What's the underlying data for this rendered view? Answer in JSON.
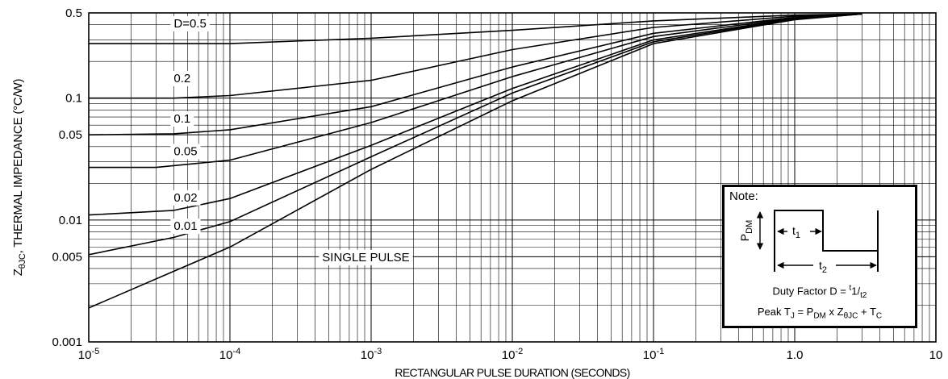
{
  "chart_data": {
    "type": "line",
    "xscale": "log",
    "yscale": "log",
    "xlim": [
      1e-05,
      10
    ],
    "ylim": [
      0.001,
      0.5
    ],
    "xlabel": "RECTANGULAR PULSE DURATION (SECONDS)",
    "ylabel": "Z",
    "ylabel_subscript": "θJC",
    "ylabel_suffix": ", THERMAL IMPEDANCE (°C/W)",
    "x_ticks": [
      {
        "value": 1e-05,
        "base": "10",
        "exp": "-5"
      },
      {
        "value": 0.0001,
        "base": "10",
        "exp": "-4"
      },
      {
        "value": 0.001,
        "base": "10",
        "exp": "-3"
      },
      {
        "value": 0.01,
        "base": "10",
        "exp": "-2"
      },
      {
        "value": 0.1,
        "base": "10",
        "exp": "-1"
      },
      {
        "value": 1,
        "base": "1.0",
        "exp": ""
      },
      {
        "value": 10,
        "base": "10",
        "exp": ""
      }
    ],
    "y_ticks": [
      {
        "value": 0.001,
        "label": "0.001"
      },
      {
        "value": 0.005,
        "label": "0.005"
      },
      {
        "value": 0.01,
        "label": "0.01"
      },
      {
        "value": 0.05,
        "label": "0.05"
      },
      {
        "value": 0.1,
        "label": "0.1"
      },
      {
        "value": 0.5,
        "label": "0.5"
      }
    ],
    "grid": true,
    "series": [
      {
        "name": "D=0.5",
        "x": [
          1e-05,
          0.0001,
          0.001,
          0.01,
          0.1,
          1,
          3
        ],
        "y": [
          0.28,
          0.28,
          0.31,
          0.36,
          0.43,
          0.48,
          0.49
        ]
      },
      {
        "name": "0.2",
        "x": [
          1e-05,
          4e-05,
          0.0001,
          0.001,
          0.01,
          0.1,
          1,
          3
        ],
        "y": [
          0.1,
          0.1,
          0.105,
          0.14,
          0.25,
          0.38,
          0.47,
          0.49
        ]
      },
      {
        "name": "0.1",
        "x": [
          1e-05,
          4e-05,
          0.0001,
          0.001,
          0.01,
          0.1,
          1,
          3
        ],
        "y": [
          0.05,
          0.051,
          0.055,
          0.085,
          0.18,
          0.34,
          0.46,
          0.49
        ]
      },
      {
        "name": "0.05",
        "x": [
          1e-05,
          3e-05,
          0.0001,
          0.001,
          0.01,
          0.1,
          1,
          3
        ],
        "y": [
          0.027,
          0.027,
          0.031,
          0.063,
          0.15,
          0.32,
          0.455,
          0.49
        ]
      },
      {
        "name": "0.02",
        "x": [
          1e-05,
          4e-05,
          0.0001,
          0.001,
          0.01,
          0.1,
          1,
          3
        ],
        "y": [
          0.011,
          0.012,
          0.015,
          0.041,
          0.12,
          0.3,
          0.45,
          0.49
        ]
      },
      {
        "name": "0.01",
        "x": [
          1e-05,
          4e-05,
          0.0001,
          0.001,
          0.01,
          0.1,
          1,
          3
        ],
        "y": [
          0.0052,
          0.0072,
          0.0097,
          0.033,
          0.11,
          0.29,
          0.445,
          0.49
        ]
      },
      {
        "name": "SINGLE PULSE",
        "x": [
          1e-05,
          4e-05,
          0.0001,
          0.001,
          0.01,
          0.1,
          1,
          3
        ],
        "y": [
          0.0019,
          0.0038,
          0.006,
          0.026,
          0.095,
          0.28,
          0.44,
          0.49
        ]
      }
    ],
    "curve_labels": [
      {
        "text": "D=0.5",
        "x": 4e-05,
        "y": 0.38
      },
      {
        "text": "0.2",
        "x": 4e-05,
        "y": 0.135
      },
      {
        "text": "0.1",
        "x": 4e-05,
        "y": 0.063
      },
      {
        "text": "0.05",
        "x": 4e-05,
        "y": 0.034
      },
      {
        "text": "0.02",
        "x": 4e-05,
        "y": 0.0142
      },
      {
        "text": "0.01",
        "x": 4e-05,
        "y": 0.0083
      },
      {
        "text": "SINGLE PULSE",
        "x": 0.00045,
        "y": 0.0046
      }
    ]
  },
  "note": {
    "title": "Note:",
    "pdm": "P",
    "pdm_sub": "DM",
    "t1": "t",
    "t1_sub": "1",
    "t2": "t",
    "t2_sub": "2",
    "duty_text": "Duty Factor  D = ",
    "duty_num": "1",
    "duty_den": "2",
    "peak_text": "Peak T",
    "peak_sub": "J",
    "peak_rest1": " = P",
    "peak_rest1_sub": "DM",
    "peak_rest2": " x Z",
    "peak_rest2_sub": "θJC",
    "peak_rest3": " + T",
    "peak_rest3_sub": "C"
  }
}
